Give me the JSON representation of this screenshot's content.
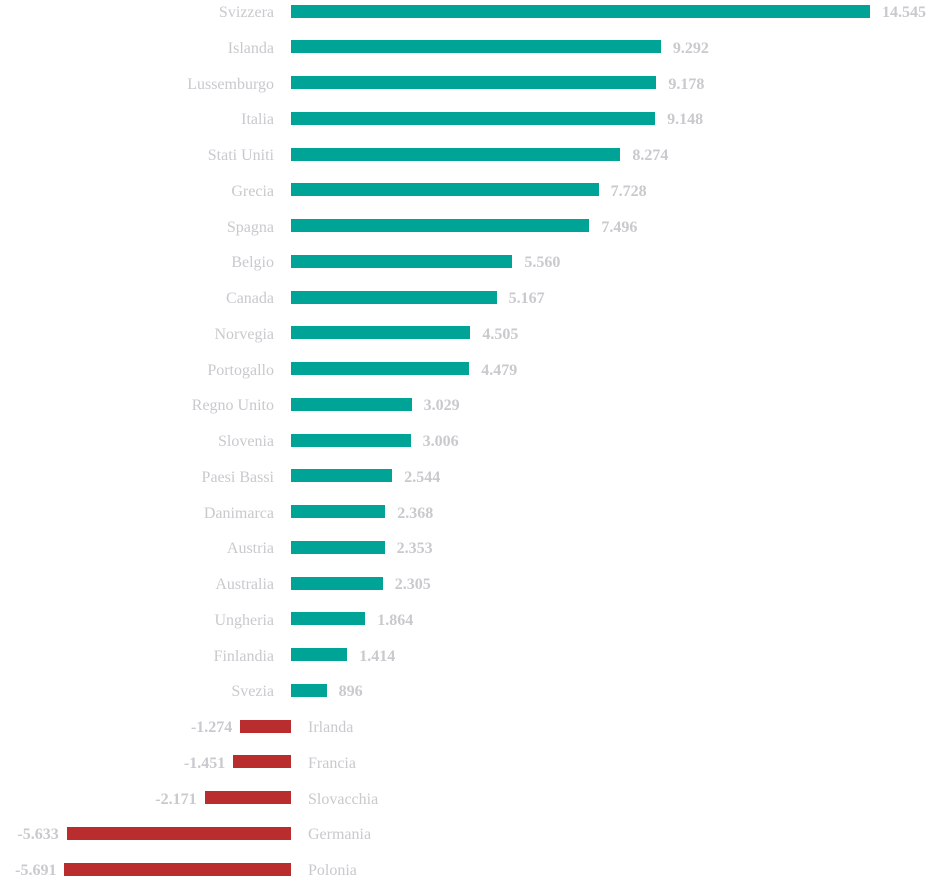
{
  "chart_data": {
    "type": "bar",
    "orientation": "horizontal",
    "title": "",
    "xlabel": "",
    "ylabel": "",
    "colors": {
      "positive": "#00a497",
      "negative": "#b92d2e",
      "text": "#c9c9ce"
    },
    "categories": [
      "Svizzera",
      "Islanda",
      "Lussemburgo",
      "Italia",
      "Stati Uniti",
      "Grecia",
      "Spagna",
      "Belgio",
      "Canada",
      "Norvegia",
      "Portogallo",
      "Regno Unito",
      "Slovenia",
      "Paesi Bassi",
      "Danimarca",
      "Austria",
      "Australia",
      "Ungheria",
      "Finlandia",
      "Svezia",
      "Irlanda",
      "Francia",
      "Slovacchia",
      "Germania",
      "Polonia"
    ],
    "values": [
      14545,
      9292,
      9178,
      9148,
      8274,
      7728,
      7496,
      5560,
      5167,
      4505,
      4479,
      3029,
      3006,
      2544,
      2368,
      2353,
      2305,
      1864,
      1414,
      896,
      -1274,
      -1451,
      -2171,
      -5633,
      -5691
    ],
    "value_labels": [
      "14.545",
      "9.292",
      "9.178",
      "9.148",
      "8.274",
      "7.728",
      "7.496",
      "5.560",
      "5.167",
      "4.505",
      "4.479",
      "3.029",
      "3.006",
      "2.544",
      "2.368",
      "2.353",
      "2.305",
      "1.864",
      "1.414",
      "896",
      "-1.274",
      "-1.451",
      "-2.171",
      "-5.633",
      "-5.691"
    ],
    "xlim": [
      -5691,
      14545
    ]
  }
}
